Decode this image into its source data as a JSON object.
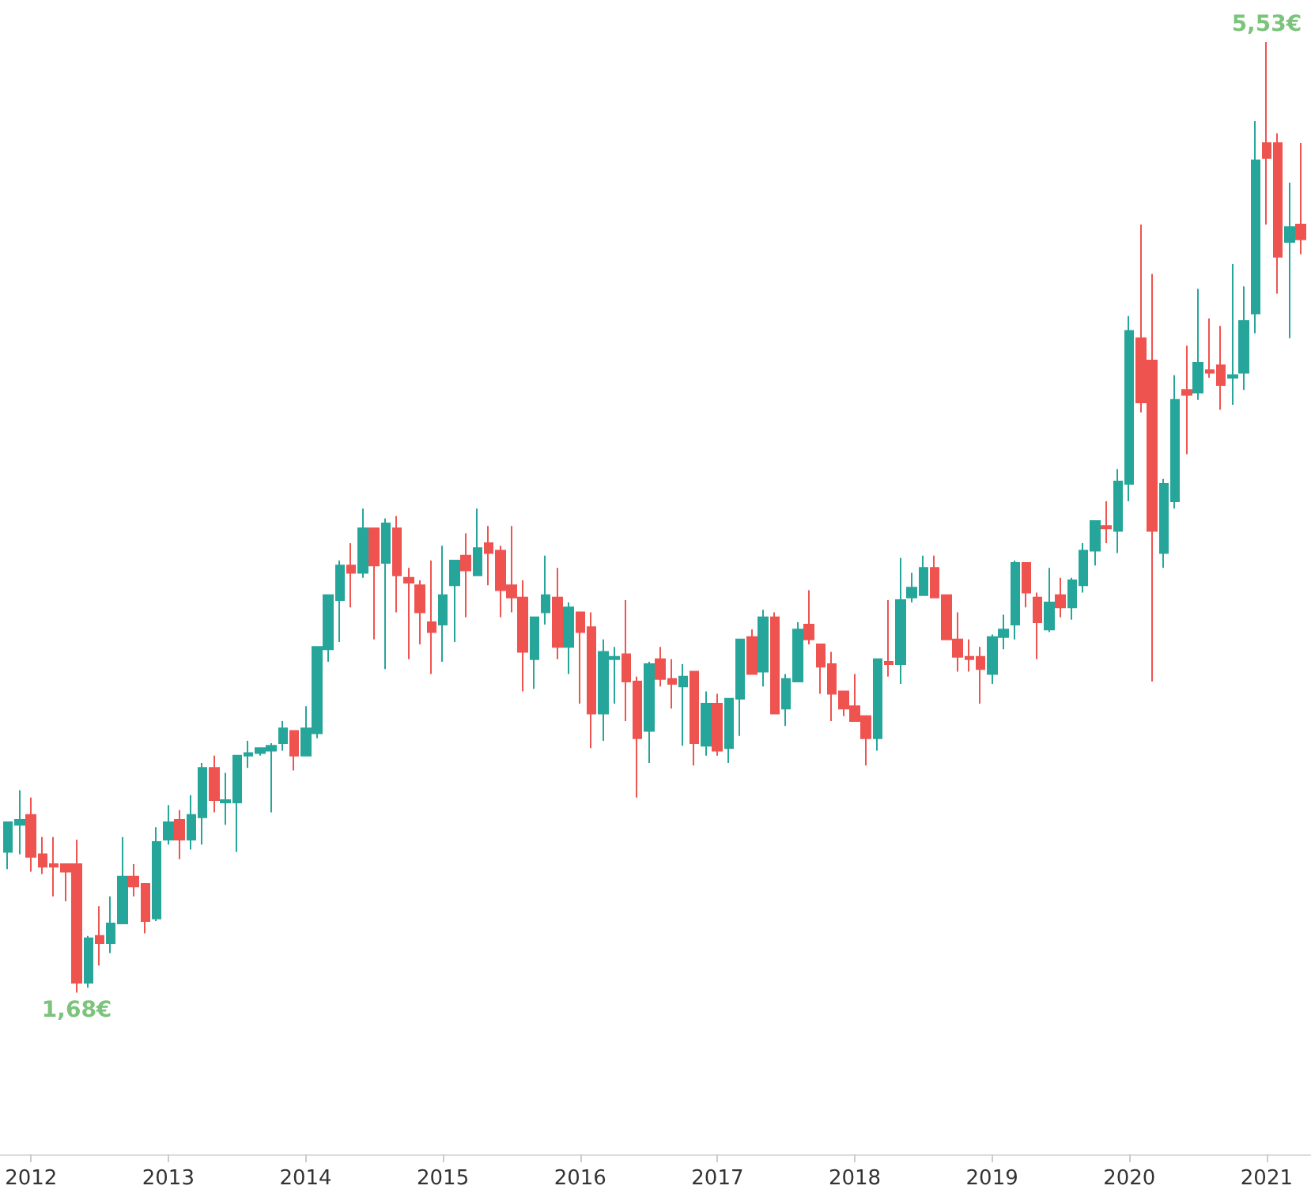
{
  "chart_data": {
    "type": "candlestick",
    "x": [
      2011.833,
      2011.917,
      2012,
      2012.083,
      2012.167,
      2012.25,
      2012.333,
      2012.417,
      2012.5,
      2012.583,
      2012.667,
      2012.75,
      2012.833,
      2012.917,
      2013,
      2013.083,
      2013.167,
      2013.25,
      2013.333,
      2013.417,
      2013.5,
      2013.583,
      2013.667,
      2013.75,
      2013.833,
      2013.917,
      2014,
      2014.083,
      2014.167,
      2014.25,
      2014.333,
      2014.417,
      2014.5,
      2014.583,
      2014.667,
      2014.75,
      2014.833,
      2014.917,
      2015,
      2015.083,
      2015.167,
      2015.25,
      2015.333,
      2015.417,
      2015.5,
      2015.583,
      2015.667,
      2015.75,
      2015.833,
      2015.917,
      2016,
      2016.083,
      2016.167,
      2016.25,
      2016.333,
      2016.417,
      2016.5,
      2016.583,
      2016.667,
      2016.75,
      2016.833,
      2016.917,
      2017,
      2017.083,
      2017.167,
      2017.25,
      2017.333,
      2017.417,
      2017.5,
      2017.583,
      2017.667,
      2017.75,
      2017.833,
      2017.917,
      2018,
      2018.083,
      2018.167,
      2018.25,
      2018.333,
      2018.417,
      2018.5,
      2018.583,
      2018.667,
      2018.75,
      2018.833,
      2018.917,
      2019,
      2019.083,
      2019.167,
      2019.25,
      2019.333,
      2019.417,
      2019.5,
      2019.583,
      2019.667,
      2019.75,
      2019.833,
      2019.917,
      2020,
      2020.083,
      2020.167,
      2020.25,
      2020.333,
      2020.417,
      2020.5,
      2020.583,
      2020.667,
      2020.75,
      2020.833,
      2020.917,
      2021,
      2021.083,
      2021.167,
      2021.25
    ],
    "ohlc": [
      [
        2.25,
        2.37,
        2.18,
        2.37
      ],
      [
        2.36,
        2.5,
        2.24,
        2.38
      ],
      [
        2.4,
        2.47,
        2.17,
        2.23
      ],
      [
        2.24,
        2.31,
        2.16,
        2.19
      ],
      [
        2.2,
        2.31,
        2.07,
        2.19
      ],
      [
        2.2,
        2.2,
        2.05,
        2.17
      ],
      [
        2.2,
        2.3,
        1.68,
        1.72
      ],
      [
        1.72,
        1.91,
        1.7,
        1.9
      ],
      [
        1.91,
        2.03,
        1.79,
        1.88
      ],
      [
        1.88,
        2.07,
        1.84,
        1.96
      ],
      [
        1.96,
        2.31,
        1.96,
        2.15
      ],
      [
        2.15,
        2.2,
        2.07,
        2.11
      ],
      [
        2.12,
        2.12,
        1.92,
        1.97
      ],
      [
        1.98,
        2.35,
        1.97,
        2.29
      ],
      [
        2.3,
        2.44,
        2.28,
        2.37
      ],
      [
        2.38,
        2.42,
        2.22,
        2.3
      ],
      [
        2.3,
        2.48,
        2.26,
        2.4
      ],
      [
        2.39,
        2.61,
        2.28,
        2.59
      ],
      [
        2.59,
        2.64,
        2.41,
        2.46
      ],
      [
        2.45,
        2.57,
        2.36,
        2.46
      ],
      [
        2.45,
        2.64,
        2.25,
        2.64
      ],
      [
        2.64,
        2.7,
        2.59,
        2.65
      ],
      [
        2.65,
        2.67,
        2.64,
        2.67
      ],
      [
        2.66,
        2.69,
        2.41,
        2.68
      ],
      [
        2.69,
        2.78,
        2.66,
        2.75
      ],
      [
        2.74,
        2.74,
        2.58,
        2.64
      ],
      [
        2.64,
        2.84,
        2.64,
        2.75
      ],
      [
        2.73,
        3.08,
        2.71,
        3.08
      ],
      [
        3.07,
        3.29,
        3.02,
        3.29
      ],
      [
        3.27,
        3.43,
        3.1,
        3.41
      ],
      [
        3.41,
        3.5,
        3.24,
        3.38
      ],
      [
        3.38,
        3.64,
        3.36,
        3.56
      ],
      [
        3.56,
        3.56,
        3.11,
        3.41
      ],
      [
        3.42,
        3.6,
        2.99,
        3.58
      ],
      [
        3.56,
        3.61,
        3.22,
        3.37
      ],
      [
        3.36,
        3.4,
        3.03,
        3.34
      ],
      [
        3.33,
        3.35,
        3.09,
        3.22
      ],
      [
        3.18,
        3.43,
        2.97,
        3.14
      ],
      [
        3.17,
        3.49,
        3.02,
        3.29
      ],
      [
        3.33,
        3.43,
        3.1,
        3.43
      ],
      [
        3.45,
        3.54,
        3.2,
        3.39
      ],
      [
        3.37,
        3.64,
        3.37,
        3.48
      ],
      [
        3.5,
        3.57,
        3.33,
        3.46
      ],
      [
        3.47,
        3.49,
        3.2,
        3.31
      ],
      [
        3.33,
        3.57,
        3.22,
        3.28
      ],
      [
        3.28,
        3.35,
        2.9,
        3.06
      ],
      [
        3.03,
        3.2,
        2.91,
        3.2
      ],
      [
        3.22,
        3.45,
        3.17,
        3.29
      ],
      [
        3.28,
        3.4,
        3.03,
        3.08
      ],
      [
        3.08,
        3.26,
        2.97,
        3.24
      ],
      [
        3.22,
        3.22,
        2.85,
        3.14
      ],
      [
        3.16,
        3.22,
        2.67,
        2.81
      ],
      [
        2.81,
        3.11,
        2.7,
        3.06
      ],
      [
        3.03,
        3.08,
        2.85,
        3.04
      ],
      [
        3.05,
        3.27,
        2.78,
        2.94
      ],
      [
        2.94,
        2.96,
        2.47,
        2.71
      ],
      [
        2.74,
        3.02,
        2.61,
        3.01
      ],
      [
        3.03,
        3.08,
        2.92,
        2.95
      ],
      [
        2.95,
        3.03,
        2.83,
        2.93
      ],
      [
        2.92,
        3.01,
        2.68,
        2.96
      ],
      [
        2.98,
        2.98,
        2.6,
        2.69
      ],
      [
        2.68,
        2.9,
        2.64,
        2.85
      ],
      [
        2.85,
        2.89,
        2.64,
        2.66
      ],
      [
        2.67,
        2.87,
        2.61,
        2.87
      ],
      [
        2.87,
        3.11,
        2.72,
        3.11
      ],
      [
        3.12,
        3.15,
        2.97,
        2.97
      ],
      [
        2.98,
        3.23,
        2.92,
        3.2
      ],
      [
        3.2,
        3.22,
        2.81,
        2.81
      ],
      [
        2.83,
        2.97,
        2.76,
        2.95
      ],
      [
        2.94,
        3.18,
        2.94,
        3.15
      ],
      [
        3.17,
        3.31,
        3.09,
        3.11
      ],
      [
        3.09,
        3.09,
        2.89,
        3.0
      ],
      [
        3.01,
        3.06,
        2.78,
        2.89
      ],
      [
        2.9,
        2.9,
        2.8,
        2.83
      ],
      [
        2.84,
        2.97,
        2.78,
        2.78
      ],
      [
        2.8,
        2.8,
        2.6,
        2.71
      ],
      [
        2.71,
        3.03,
        2.66,
        3.03
      ],
      [
        3.02,
        3.27,
        2.96,
        3.01
      ],
      [
        3.01,
        3.44,
        2.93,
        3.27
      ],
      [
        3.28,
        3.38,
        3.26,
        3.32
      ],
      [
        3.29,
        3.45,
        3.29,
        3.4
      ],
      [
        3.4,
        3.45,
        3.28,
        3.28
      ],
      [
        3.29,
        3.29,
        3.11,
        3.11
      ],
      [
        3.11,
        3.22,
        2.98,
        3.04
      ],
      [
        3.04,
        3.11,
        2.98,
        3.03
      ],
      [
        3.04,
        3.08,
        2.85,
        2.99
      ],
      [
        2.97,
        3.13,
        2.93,
        3.12
      ],
      [
        3.12,
        3.21,
        3.07,
        3.15
      ],
      [
        3.17,
        3.43,
        3.11,
        3.42
      ],
      [
        3.42,
        3.42,
        3.24,
        3.3
      ],
      [
        3.28,
        3.3,
        3.03,
        3.18
      ],
      [
        3.15,
        3.4,
        3.14,
        3.26
      ],
      [
        3.29,
        3.36,
        3.2,
        3.24
      ],
      [
        3.24,
        3.36,
        3.19,
        3.35
      ],
      [
        3.33,
        3.5,
        3.3,
        3.47
      ],
      [
        3.47,
        3.59,
        3.41,
        3.59
      ],
      [
        3.57,
        3.67,
        3.5,
        3.56
      ],
      [
        3.55,
        3.8,
        3.46,
        3.75
      ],
      [
        3.74,
        4.42,
        3.67,
        4.36
      ],
      [
        4.33,
        4.79,
        4.03,
        4.07
      ],
      [
        4.24,
        4.59,
        2.94,
        3.55
      ],
      [
        3.46,
        3.76,
        3.4,
        3.74
      ],
      [
        3.67,
        4.18,
        3.64,
        4.08
      ],
      [
        4.12,
        4.3,
        3.86,
        4.1
      ],
      [
        4.11,
        4.53,
        4.08,
        4.23
      ],
      [
        4.2,
        4.41,
        4.17,
        4.19
      ],
      [
        4.22,
        4.38,
        4.04,
        4.14
      ],
      [
        4.17,
        4.63,
        4.06,
        4.18
      ],
      [
        4.19,
        4.54,
        4.12,
        4.4
      ],
      [
        4.43,
        5.21,
        4.35,
        5.05
      ],
      [
        5.12,
        5.53,
        4.79,
        5.06
      ],
      [
        5.12,
        5.16,
        4.51,
        4.66
      ],
      [
        4.72,
        4.96,
        4.33,
        4.78
      ],
      [
        4.79,
        5.12,
        4.67,
        4.73
      ]
    ],
    "colors": [
      "#26a69a",
      "#26a69a",
      "#ef5350",
      "#ef5350",
      "#ef5350",
      "#ef5350",
      "#ef5350",
      "#26a69a",
      "#ef5350",
      "#26a69a",
      "#26a69a",
      "#ef5350",
      "#ef5350",
      "#26a69a",
      "#26a69a",
      "#ef5350",
      "#26a69a",
      "#26a69a",
      "#ef5350",
      "#26a69a",
      "#26a69a",
      "#26a69a",
      "#26a69a",
      "#26a69a",
      "#26a69a",
      "#ef5350",
      "#26a69a",
      "#26a69a",
      "#26a69a",
      "#26a69a",
      "#ef5350",
      "#26a69a",
      "#ef5350",
      "#26a69a",
      "#ef5350",
      "#ef5350",
      "#ef5350",
      "#ef5350",
      "#26a69a",
      "#26a69a",
      "#ef5350",
      "#26a69a",
      "#ef5350",
      "#ef5350",
      "#ef5350",
      "#ef5350",
      "#26a69a",
      "#26a69a",
      "#ef5350",
      "#26a69a",
      "#ef5350",
      "#ef5350",
      "#26a69a",
      "#26a69a",
      "#ef5350",
      "#ef5350",
      "#26a69a",
      "#ef5350",
      "#ef5350",
      "#26a69a",
      "#ef5350",
      "#26a69a",
      "#ef5350",
      "#26a69a",
      "#26a69a",
      "#ef5350",
      "#26a69a",
      "#ef5350",
      "#26a69a",
      "#26a69a",
      "#ef5350",
      "#ef5350",
      "#ef5350",
      "#ef5350",
      "#ef5350",
      "#ef5350",
      "#26a69a",
      "#ef5350",
      "#26a69a",
      "#26a69a",
      "#26a69a",
      "#ef5350",
      "#ef5350",
      "#ef5350",
      "#ef5350",
      "#ef5350",
      "#26a69a",
      "#26a69a",
      "#26a69a",
      "#ef5350",
      "#ef5350",
      "#26a69a",
      "#ef5350",
      "#26a69a",
      "#26a69a",
      "#26a69a",
      "#ef5350",
      "#26a69a",
      "#26a69a",
      "#ef5350",
      "#ef5350",
      "#26a69a",
      "#26a69a",
      "#ef5350",
      "#26a69a",
      "#ef5350",
      "#ef5350",
      "#26a69a",
      "#26a69a",
      "#26a69a",
      "#ef5350",
      "#ef5350",
      "#26a69a",
      "#ef5350"
    ],
    "xlim": [
      2011.774,
      2021.323
    ],
    "xticks": [
      2012,
      2013,
      2014,
      2015,
      2016,
      2017,
      2018,
      2019,
      2020,
      2021
    ],
    "annotations": [
      {
        "text": "1,68€",
        "x": 2012.333,
        "y": 1.68
      },
      {
        "text": "5,53€",
        "x": 2021,
        "y": 5.53
      }
    ],
    "grid": false
  }
}
